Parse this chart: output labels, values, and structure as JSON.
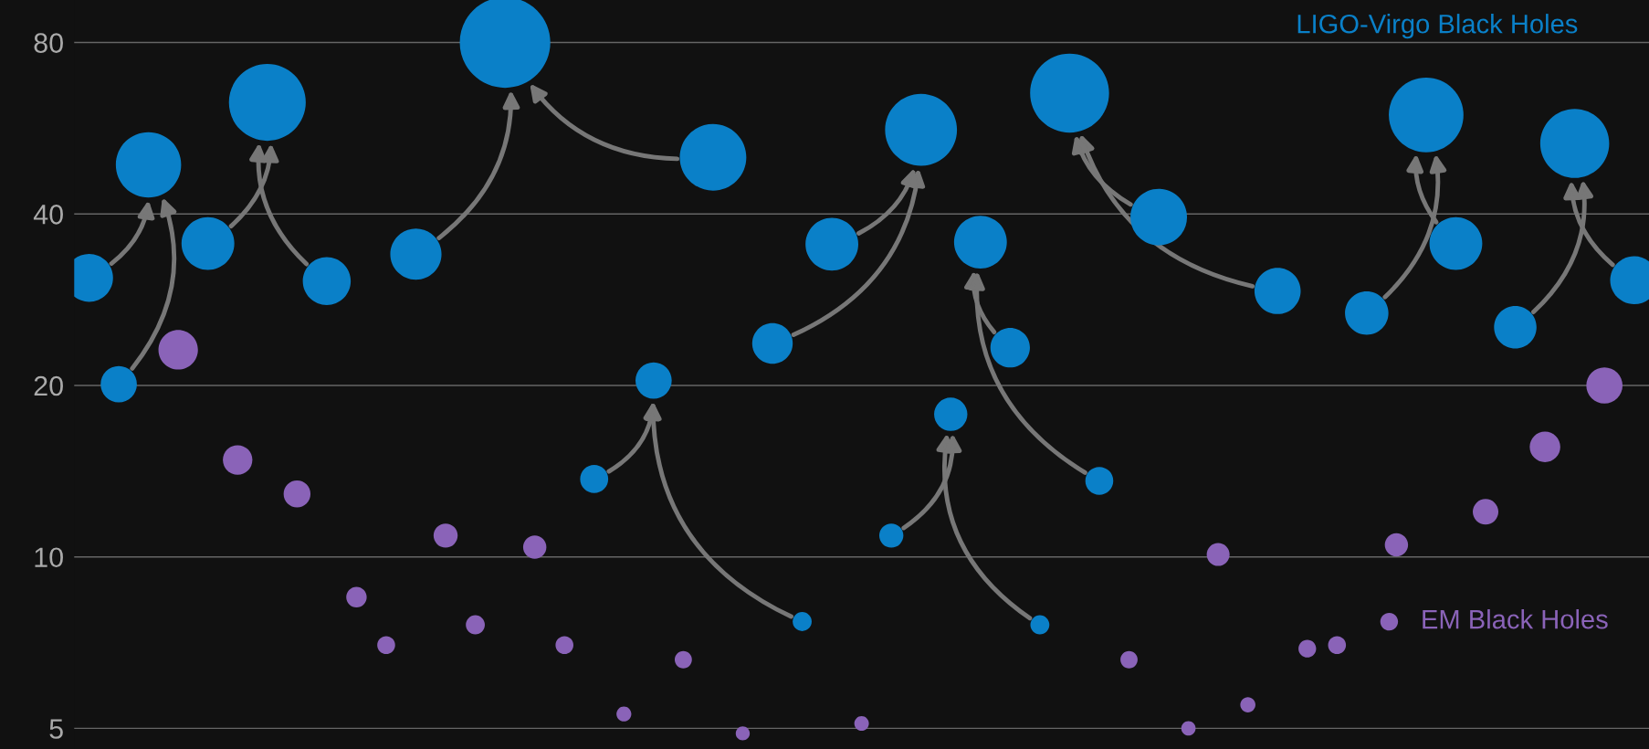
{
  "chart_data": {
    "type": "bubble",
    "log": "y",
    "ylim": [
      4.6,
      95
    ],
    "yticks": [
      5,
      10,
      20,
      40,
      80
    ],
    "grid": "y",
    "marker": "circle",
    "categories": [
      null,
      null,
      null,
      null,
      null,
      null,
      null,
      null,
      null,
      null,
      null,
      null,
      null,
      null,
      null,
      null,
      null,
      null,
      null,
      null,
      null,
      null,
      null,
      null,
      null,
      null,
      null,
      null,
      null,
      null,
      null,
      null,
      null,
      null,
      null,
      null,
      null,
      null,
      null,
      null,
      null,
      null,
      null,
      null,
      null,
      null,
      null,
      null,
      null,
      null,
      null,
      null,
      null
    ],
    "series": [
      {
        "name": "LIGO-Virgo Black Holes",
        "color": "#0a80c8",
        "values": [
          30.9,
          20.1,
          48.8,
          null,
          null,
          null,
          null,
          null,
          null,
          null,
          null,
          null,
          null,
          null,
          null,
          null,
          null,
          null,
          null,
          null,
          null,
          null,
          null,
          null,
          null,
          null,
          null,
          null,
          null,
          null,
          null,
          null,
          null,
          null,
          null,
          null,
          null,
          null,
          null,
          null,
          null,
          null,
          null,
          null,
          null,
          null,
          null,
          null,
          null,
          null,
          null,
          null,
          null
        ],
        "sizes": [
          0.28,
          0.16,
          0.52,
          null,
          null,
          null,
          null,
          null,
          null,
          null,
          null,
          null,
          null,
          null,
          null,
          null,
          null,
          null,
          null,
          null,
          null,
          null,
          null,
          null,
          null,
          null,
          null,
          null,
          null,
          null,
          null,
          null,
          null,
          null,
          null,
          null,
          null,
          null,
          null,
          null,
          null,
          null,
          null,
          null,
          null,
          null,
          null,
          null,
          null,
          null,
          null,
          null,
          null
        ]
      },
      {
        "color": "#0a80c8",
        "values": [
          null,
          null,
          null,
          null,
          35.5,
          null,
          62.8,
          null,
          30.5,
          null,
          null,
          null,
          null,
          null,
          null,
          null,
          null,
          null,
          null,
          null,
          null,
          null,
          null,
          null,
          null,
          null,
          null,
          null,
          null,
          null,
          null,
          null,
          null,
          null,
          null,
          null,
          null,
          null,
          null,
          null,
          null,
          null,
          null,
          null,
          null,
          null,
          null,
          null,
          null,
          null,
          null,
          null,
          null
        ],
        "sizes": [
          null,
          null,
          null,
          null,
          0.34,
          null,
          0.72,
          null,
          0.28,
          null,
          null,
          null,
          null,
          null,
          null,
          null,
          null,
          null,
          null,
          null,
          null,
          null,
          null,
          null,
          null,
          null,
          null,
          null,
          null,
          null,
          null,
          null,
          null,
          null,
          null,
          null,
          null,
          null,
          null,
          null,
          null,
          null,
          null,
          null,
          null,
          null,
          null,
          null,
          null,
          null,
          null,
          null,
          null
        ]
      },
      {
        "color": "#0a80c8",
        "values": [
          null,
          null,
          null,
          null,
          null,
          null,
          null,
          null,
          null,
          null,
          null,
          34.0,
          null,
          null,
          80,
          null,
          null,
          null,
          null,
          null,
          null,
          50.3,
          null,
          null,
          null,
          null,
          null,
          null,
          null,
          null,
          null,
          null,
          null,
          null,
          null,
          null,
          null,
          null,
          null,
          null,
          null,
          null,
          null,
          null,
          null,
          null,
          null,
          null,
          null,
          null,
          null,
          null,
          null
        ],
        "sizes": [
          null,
          null,
          null,
          null,
          null,
          null,
          null,
          null,
          null,
          null,
          null,
          0.32,
          null,
          null,
          1,
          null,
          null,
          null,
          null,
          null,
          null,
          0.54,
          null,
          null,
          null,
          null,
          null,
          null,
          null,
          null,
          null,
          null,
          null,
          null,
          null,
          null,
          null,
          null,
          null,
          null,
          null,
          null,
          null,
          null,
          null,
          null,
          null,
          null,
          null,
          null,
          null,
          null,
          null
        ]
      },
      {
        "color": "#0a80c8",
        "values": [
          null,
          null,
          null,
          null,
          null,
          null,
          null,
          null,
          null,
          null,
          null,
          null,
          null,
          null,
          null,
          null,
          null,
          null,
          null,
          null,
          null,
          null,
          null,
          23.7,
          null,
          35.4,
          null,
          null,
          56.2,
          null,
          null,
          null,
          null,
          null,
          null,
          null,
          null,
          null,
          null,
          null,
          null,
          null,
          null,
          null,
          null,
          null,
          null,
          null,
          null,
          null,
          null,
          null,
          null
        ],
        "sizes": [
          null,
          null,
          null,
          null,
          null,
          null,
          null,
          null,
          null,
          null,
          null,
          null,
          null,
          null,
          null,
          null,
          null,
          null,
          null,
          null,
          null,
          null,
          null,
          0.2,
          null,
          0.34,
          null,
          null,
          0.63,
          null,
          null,
          null,
          null,
          null,
          null,
          null,
          null,
          null,
          null,
          null,
          null,
          null,
          null,
          null,
          null,
          null,
          null,
          null,
          null,
          null,
          null,
          null,
          null
        ]
      },
      {
        "color": "#0a80c8",
        "values": [
          null,
          null,
          null,
          null,
          null,
          null,
          null,
          null,
          null,
          null,
          null,
          null,
          null,
          null,
          null,
          null,
          null,
          13.7,
          null,
          20.4,
          null,
          null,
          null,
          null,
          7.7,
          null,
          null,
          null,
          null,
          null,
          null,
          null,
          null,
          null,
          null,
          null,
          null,
          null,
          null,
          null,
          null,
          null,
          null,
          null,
          null,
          null,
          null,
          null,
          null,
          null,
          null,
          null,
          null
        ],
        "sizes": [
          null,
          null,
          null,
          null,
          null,
          null,
          null,
          null,
          null,
          null,
          null,
          null,
          null,
          null,
          null,
          null,
          null,
          0.096,
          null,
          0.16,
          null,
          null,
          null,
          null,
          0.044,
          null,
          null,
          null,
          null,
          null,
          null,
          null,
          null,
          null,
          null,
          null,
          null,
          null,
          null,
          null,
          null,
          null,
          null,
          null,
          null,
          null,
          null,
          null,
          null,
          null,
          null,
          null,
          null
        ]
      },
      {
        "color": "#0a80c8",
        "values": [
          null,
          null,
          null,
          null,
          null,
          null,
          null,
          null,
          null,
          null,
          null,
          null,
          null,
          null,
          null,
          null,
          null,
          null,
          null,
          null,
          null,
          null,
          null,
          null,
          null,
          null,
          null,
          null,
          null,
          null,
          35.7,
          23.3,
          null,
          null,
          13.6,
          null,
          null,
          null,
          null,
          null,
          null,
          null,
          null,
          null,
          null,
          null,
          null,
          null,
          null,
          null,
          null,
          null,
          null
        ],
        "sizes": [
          null,
          null,
          null,
          null,
          null,
          null,
          null,
          null,
          null,
          null,
          null,
          null,
          null,
          null,
          null,
          null,
          null,
          null,
          null,
          null,
          null,
          null,
          null,
          null,
          null,
          null,
          null,
          null,
          null,
          null,
          0.34,
          0.19,
          null,
          null,
          0.095,
          null,
          null,
          null,
          null,
          null,
          null,
          null,
          null,
          null,
          null,
          null,
          null,
          null,
          null,
          null,
          null,
          null,
          null
        ]
      },
      {
        "color": "#0a80c8",
        "values": [
          null,
          null,
          null,
          null,
          null,
          null,
          null,
          null,
          null,
          null,
          null,
          null,
          null,
          null,
          null,
          null,
          null,
          null,
          null,
          null,
          null,
          null,
          null,
          null,
          null,
          null,
          null,
          10.9,
          null,
          17.8,
          null,
          null,
          7.6,
          null,
          null,
          null,
          null,
          null,
          null,
          null,
          null,
          null,
          null,
          null,
          null,
          null,
          null,
          null,
          null,
          null,
          null,
          null,
          null
        ],
        "sizes": [
          null,
          null,
          null,
          null,
          null,
          null,
          null,
          null,
          null,
          null,
          null,
          null,
          null,
          null,
          null,
          null,
          null,
          null,
          null,
          null,
          null,
          null,
          null,
          null,
          null,
          null,
          null,
          0.071,
          null,
          0.135,
          null,
          null,
          0.044,
          null,
          null,
          null,
          null,
          null,
          null,
          null,
          null,
          null,
          null,
          null,
          null,
          null,
          null,
          null,
          null,
          null,
          null,
          null,
          null
        ]
      },
      {
        "color": "#0a80c8",
        "values": [
          null,
          null,
          null,
          null,
          null,
          null,
          null,
          null,
          null,
          null,
          null,
          null,
          null,
          null,
          null,
          null,
          null,
          null,
          null,
          null,
          null,
          null,
          null,
          null,
          null,
          null,
          null,
          null,
          null,
          null,
          null,
          null,
          null,
          65.2,
          null,
          null,
          39.5,
          null,
          null,
          null,
          29.3,
          null,
          null,
          null,
          null,
          null,
          null,
          null,
          null,
          null,
          null,
          null,
          null
        ],
        "sizes": [
          null,
          null,
          null,
          null,
          null,
          null,
          null,
          null,
          null,
          null,
          null,
          null,
          null,
          null,
          null,
          null,
          null,
          null,
          null,
          null,
          null,
          null,
          null,
          null,
          null,
          null,
          null,
          null,
          null,
          null,
          null,
          null,
          null,
          0.76,
          null,
          null,
          0.39,
          null,
          null,
          null,
          0.26,
          null,
          null,
          null,
          null,
          null,
          null,
          null,
          null,
          null,
          null,
          null,
          null
        ]
      },
      {
        "color": "#0a80c8",
        "values": [
          null,
          null,
          null,
          null,
          null,
          null,
          null,
          null,
          null,
          null,
          null,
          null,
          null,
          null,
          null,
          null,
          null,
          null,
          null,
          null,
          null,
          null,
          null,
          null,
          null,
          null,
          null,
          null,
          null,
          null,
          null,
          null,
          null,
          null,
          null,
          null,
          null,
          null,
          null,
          null,
          null,
          null,
          null,
          26.8,
          null,
          59.7,
          35.5,
          null,
          null,
          null,
          null,
          null,
          null
        ],
        "sizes": [
          null,
          null,
          null,
          null,
          null,
          null,
          null,
          null,
          null,
          null,
          null,
          null,
          null,
          null,
          null,
          null,
          null,
          null,
          null,
          null,
          null,
          null,
          null,
          null,
          null,
          null,
          null,
          null,
          null,
          null,
          null,
          null,
          null,
          null,
          null,
          null,
          null,
          null,
          null,
          null,
          null,
          null,
          null,
          0.23,
          null,
          0.68,
          0.34,
          null,
          null,
          null,
          null,
          null,
          null
        ]
      },
      {
        "color": "#0a80c8",
        "values": [
          null,
          null,
          null,
          null,
          null,
          null,
          null,
          null,
          null,
          null,
          null,
          null,
          null,
          null,
          null,
          null,
          null,
          null,
          null,
          null,
          null,
          null,
          null,
          null,
          null,
          null,
          null,
          null,
          null,
          null,
          null,
          null,
          null,
          null,
          null,
          null,
          null,
          null,
          null,
          null,
          null,
          null,
          null,
          null,
          null,
          null,
          null,
          null,
          25.3,
          null,
          53.2,
          null,
          30.6
        ],
        "sizes": [
          null,
          null,
          null,
          null,
          null,
          null,
          null,
          null,
          null,
          null,
          null,
          null,
          null,
          null,
          null,
          null,
          null,
          null,
          null,
          null,
          null,
          null,
          null,
          null,
          null,
          null,
          null,
          null,
          null,
          null,
          null,
          null,
          null,
          null,
          null,
          null,
          null,
          null,
          null,
          null,
          null,
          null,
          null,
          null,
          null,
          null,
          null,
          null,
          0.22,
          null,
          0.58,
          null,
          0.28
        ]
      },
      {
        "name": "EM Black Holes",
        "color": "#8a63b8",
        "values": [
          null,
          null,
          null,
          23.1,
          null,
          14.8,
          null,
          12.9,
          null,
          8.5,
          7.0,
          null,
          10.9,
          7.6,
          null,
          10.4,
          7.0,
          null,
          5.3,
          null,
          6.6,
          null,
          4.9,
          null,
          null,
          null,
          5.1,
          null,
          null,
          null,
          null,
          null,
          null,
          null,
          null,
          6.6,
          null,
          5.0,
          10.1,
          5.5,
          null,
          6.9,
          7.0,
          null,
          10.5,
          null,
          null,
          12.0,
          null,
          15.6,
          null,
          20.0,
          null
        ],
        "sizes": [
          null,
          null,
          null,
          0.19,
          null,
          0.106,
          null,
          0.088,
          null,
          0.051,
          0.039,
          null,
          0.071,
          0.044,
          null,
          0.066,
          0.039,
          null,
          0.027,
          null,
          0.036,
          null,
          0.024,
          null,
          null,
          null,
          0.026,
          null,
          null,
          null,
          null,
          null,
          null,
          null,
          null,
          0.036,
          null,
          0.025,
          0.064,
          0.028,
          null,
          0.038,
          0.039,
          null,
          0.066,
          null,
          null,
          0.08,
          null,
          0.114,
          null,
          0.16,
          null
        ]
      }
    ]
  }
}
